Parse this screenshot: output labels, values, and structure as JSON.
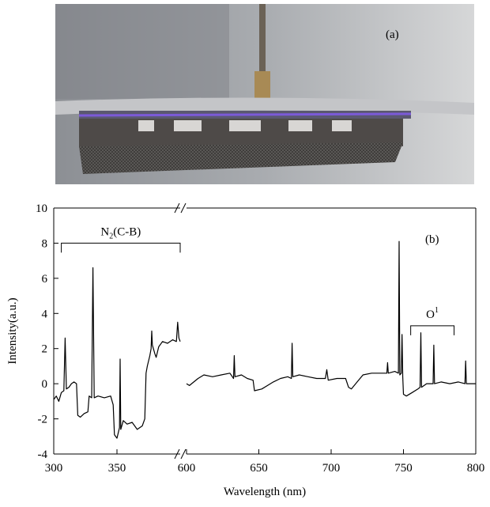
{
  "photo_label": "(a)",
  "chart_data": {
    "type": "line",
    "panel_label": "(b)",
    "x_label": "Wavelength (nm)",
    "y_label": "Intensity(a.u.)",
    "xlim": [
      300,
      800
    ],
    "xbreak": [
      400,
      600
    ],
    "xticks": [
      300,
      350,
      600,
      650,
      700,
      750,
      800
    ],
    "ylim": [
      -4,
      10
    ],
    "yticks": [
      -4,
      -2,
      0,
      2,
      4,
      6,
      8,
      10
    ],
    "color": "#000000",
    "annotations": [
      {
        "parts": [
          "N",
          "2",
          "(C-B)"
        ],
        "script": "sub",
        "x_range": [
          306,
          400
        ],
        "y": 8
      },
      {
        "parts": [
          "O",
          "1"
        ],
        "script": "sup",
        "x_range": [
          755,
          785
        ],
        "y": 3.3
      }
    ],
    "x": [
      300,
      302,
      304,
      306,
      308,
      309,
      310,
      312,
      314,
      316,
      318,
      319,
      321,
      324,
      327,
      328,
      330,
      331,
      332,
      335,
      340,
      345,
      347,
      348,
      350,
      351,
      352,
      352.5,
      353,
      355,
      358,
      362,
      366,
      370,
      372,
      373,
      374,
      376,
      377,
      377.5,
      378,
      380,
      381,
      383,
      386,
      390,
      394,
      397,
      398,
      399,
      400,
      null,
      600,
      602,
      605,
      608,
      612,
      618,
      624,
      630,
      632.5,
      633,
      633.5,
      638,
      642,
      646,
      647,
      652,
      656,
      660,
      665,
      670,
      672.5,
      673,
      673.5,
      678,
      684,
      690,
      696,
      697,
      698,
      704,
      710,
      712,
      714,
      718,
      722,
      728,
      734,
      738.5,
      739,
      739.5,
      744,
      746.5,
      747,
      747.5,
      748.5,
      749,
      749.5,
      750,
      752,
      756,
      760,
      761.5,
      762,
      762.5,
      766,
      770.5,
      771,
      771.5,
      776,
      782,
      788,
      792.5,
      793,
      793.5,
      800
    ],
    "values": [
      -0.9,
      -0.7,
      -1.0,
      -0.5,
      -0.4,
      2.6,
      -0.3,
      -0.2,
      0.0,
      0.1,
      0.0,
      -1.8,
      -1.9,
      -1.7,
      -1.6,
      -0.7,
      -0.8,
      6.6,
      -0.8,
      -0.7,
      -0.8,
      -0.7,
      -1.2,
      -2.9,
      -3.1,
      -2.8,
      -2.5,
      1.4,
      -2.6,
      -2.1,
      -2.3,
      -2.2,
      -2.6,
      -2.4,
      -2.0,
      0.6,
      1.0,
      1.6,
      2.0,
      3.0,
      2.2,
      1.7,
      1.5,
      2.1,
      2.4,
      2.3,
      2.5,
      2.4,
      3.5,
      2.6,
      2.4,
      null,
      0.0,
      -0.1,
      0.1,
      0.3,
      0.5,
      0.4,
      0.5,
      0.6,
      0.3,
      1.6,
      0.4,
      0.5,
      0.3,
      0.2,
      -0.4,
      -0.3,
      -0.1,
      0.1,
      0.3,
      0.4,
      0.3,
      2.3,
      0.4,
      0.5,
      0.4,
      0.3,
      0.3,
      0.8,
      0.2,
      0.3,
      0.3,
      -0.2,
      -0.3,
      0.1,
      0.5,
      0.6,
      0.6,
      0.6,
      1.2,
      0.6,
      0.7,
      0.6,
      8.1,
      0.5,
      0.6,
      2.8,
      0.4,
      -0.6,
      -0.7,
      -0.5,
      -0.3,
      -0.2,
      2.9,
      -0.2,
      0.0,
      0.0,
      2.2,
      0.0,
      0.1,
      0.0,
      0.1,
      0.0,
      1.3,
      0.0,
      0.0
    ]
  }
}
